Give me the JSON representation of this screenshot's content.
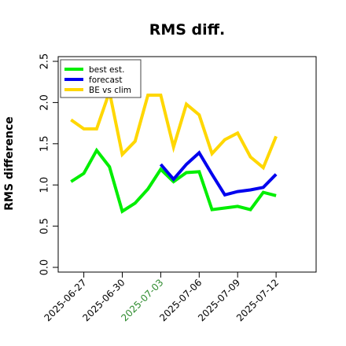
{
  "chart_data": {
    "type": "line",
    "title": "RMS diff.",
    "xlabel": "",
    "ylabel": "RMS difference",
    "ylim": [
      0,
      2.5
    ],
    "yticks": [
      "0.0",
      "0.5",
      "1.0",
      "1.5",
      "2.0",
      "2.5"
    ],
    "xlim": [
      "2025-06-25",
      "2025-07-15"
    ],
    "xticks": [
      {
        "date": "2025-06-27",
        "label": "2025-06-27",
        "color": "#000000"
      },
      {
        "date": "2025-06-30",
        "label": "2025-06-30",
        "color": "#000000"
      },
      {
        "date": "2025-07-03",
        "label": "2025-07-03",
        "color": "#2e8b2e"
      },
      {
        "date": "2025-07-06",
        "label": "2025-07-06",
        "color": "#000000"
      },
      {
        "date": "2025-07-09",
        "label": "2025-07-09",
        "color": "#000000"
      },
      {
        "date": "2025-07-12",
        "label": "2025-07-12",
        "color": "#000000"
      }
    ],
    "grid": false,
    "legend_position": "top-left",
    "series": [
      {
        "name": "best est.",
        "color": "#00ee00",
        "x": [
          "2025-06-26",
          "2025-06-27",
          "2025-06-28",
          "2025-06-29",
          "2025-06-30",
          "2025-07-01",
          "2025-07-02",
          "2025-07-03",
          "2025-07-04",
          "2025-07-05",
          "2025-07-06",
          "2025-07-07",
          "2025-07-08",
          "2025-07-09",
          "2025-07-10",
          "2025-07-11",
          "2025-07-12"
        ],
        "y": [
          1.04,
          1.14,
          1.42,
          1.22,
          0.68,
          0.78,
          0.95,
          1.19,
          1.04,
          1.15,
          1.16,
          0.7,
          0.72,
          0.74,
          0.7,
          0.91,
          0.87
        ]
      },
      {
        "name": "forecast",
        "color": "#0000ee",
        "x": [
          "2025-07-03",
          "2025-07-04",
          "2025-07-05",
          "2025-07-06",
          "2025-07-07",
          "2025-07-08",
          "2025-07-09",
          "2025-07-10",
          "2025-07-11",
          "2025-07-12"
        ],
        "y": [
          1.25,
          1.07,
          1.25,
          1.39,
          1.13,
          0.88,
          0.92,
          0.94,
          0.97,
          1.13
        ]
      },
      {
        "name": "BE vs clim",
        "color": "#ffd700",
        "x": [
          "2025-06-26",
          "2025-06-27",
          "2025-06-28",
          "2025-06-29",
          "2025-06-30",
          "2025-07-01",
          "2025-07-02",
          "2025-07-03",
          "2025-07-04",
          "2025-07-05",
          "2025-07-06",
          "2025-07-07",
          "2025-07-08",
          "2025-07-09",
          "2025-07-10",
          "2025-07-11",
          "2025-07-12"
        ],
        "y": [
          1.79,
          1.68,
          1.68,
          2.13,
          1.37,
          1.53,
          2.09,
          2.09,
          1.46,
          1.98,
          1.85,
          1.38,
          1.55,
          1.63,
          1.34,
          1.21,
          1.59
        ]
      }
    ]
  }
}
